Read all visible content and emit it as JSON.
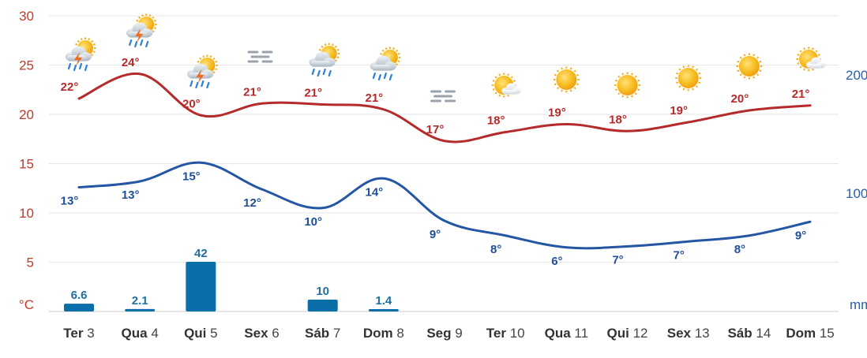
{
  "chart_data": {
    "type": "line",
    "categories": [
      {
        "name": "Ter",
        "num": "3"
      },
      {
        "name": "Qua",
        "num": "4"
      },
      {
        "name": "Qui",
        "num": "5"
      },
      {
        "name": "Sex",
        "num": "6"
      },
      {
        "name": "Sáb",
        "num": "7"
      },
      {
        "name": "Dom",
        "num": "8"
      },
      {
        "name": "Seg",
        "num": "9"
      },
      {
        "name": "Ter",
        "num": "10"
      },
      {
        "name": "Qua",
        "num": "11"
      },
      {
        "name": "Qui",
        "num": "12"
      },
      {
        "name": "Sex",
        "num": "13"
      },
      {
        "name": "Sáb",
        "num": "14"
      },
      {
        "name": "Dom",
        "num": "15"
      }
    ],
    "series": [
      {
        "kind": "line",
        "axis": "left",
        "color": "#b52a2a",
        "values": [
          21.6,
          24.1,
          19.9,
          21.1,
          21.0,
          20.5,
          17.3,
          18.2,
          19.0,
          18.3,
          19.2,
          20.4,
          20.9
        ],
        "labels": [
          "22°",
          "24°",
          "20°",
          "21°",
          "21°",
          "21°",
          "17°",
          "18°",
          "19°",
          "18°",
          "19°",
          "20°",
          "21°"
        ]
      },
      {
        "kind": "line",
        "axis": "left",
        "color": "#2456a4",
        "values": [
          12.6,
          13.2,
          15.1,
          12.4,
          10.5,
          13.5,
          9.2,
          7.7,
          6.5,
          6.6,
          7.1,
          7.7,
          9.1
        ],
        "labels": [
          "13°",
          "13°",
          "15°",
          "12°",
          "10°",
          "14°",
          "9°",
          "8°",
          "6°",
          "7°",
          "7°",
          "8°",
          "9°"
        ]
      },
      {
        "kind": "bar",
        "axis": "right",
        "color": "#0a6ea8",
        "values": [
          6.6,
          2.1,
          42,
          0,
          10,
          1.4,
          0,
          0,
          0,
          0,
          0,
          0,
          0
        ],
        "labels": [
          "6.6",
          "2.1",
          "42",
          "",
          "10",
          "1.4",
          "",
          "",
          "",
          "",
          "",
          "",
          ""
        ]
      }
    ],
    "y_left": {
      "label": "°C",
      "range": [
        0,
        30
      ],
      "ticks": [
        "5",
        "10",
        "15",
        "20",
        "25",
        "30"
      ]
    },
    "y_right": {
      "label": "mm",
      "range": [
        0,
        250
      ],
      "ticks": [
        "100",
        "200"
      ]
    },
    "weather_icons": [
      "rain-thunder-sun-icon",
      "rain-thunder-sun-icon",
      "rain-thunder-sun-icon",
      "fog-icon",
      "rain-sun-icon",
      "rain-sun-icon",
      "fog-icon",
      "partly-cloudy-icon",
      "sun-icon",
      "sun-icon",
      "sun-icon",
      "sun-icon",
      "partly-cloudy-icon"
    ],
    "grid": true
  }
}
